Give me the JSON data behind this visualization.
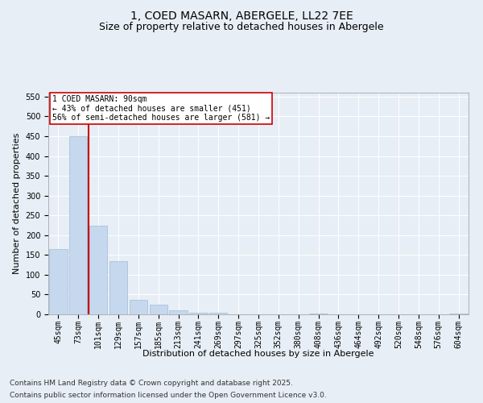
{
  "title": "1, COED MASARN, ABERGELE, LL22 7EE",
  "subtitle": "Size of property relative to detached houses in Abergele",
  "xlabel": "Distribution of detached houses by size in Abergele",
  "ylabel": "Number of detached properties",
  "categories": [
    "45sqm",
    "73sqm",
    "101sqm",
    "129sqm",
    "157sqm",
    "185sqm",
    "213sqm",
    "241sqm",
    "269sqm",
    "297sqm",
    "325sqm",
    "352sqm",
    "380sqm",
    "408sqm",
    "436sqm",
    "464sqm",
    "492sqm",
    "520sqm",
    "548sqm",
    "576sqm",
    "604sqm"
  ],
  "values": [
    165,
    450,
    224,
    134,
    37,
    25,
    10,
    5,
    4,
    0,
    1,
    0,
    0,
    2,
    0,
    0,
    0,
    0,
    0,
    0,
    2
  ],
  "bar_color": "#c5d8ed",
  "bar_edge_color": "#a0bcd8",
  "red_line_x": 1.5,
  "property_label": "1 COED MASARN: 90sqm",
  "annotation_line1": "← 43% of detached houses are smaller (451)",
  "annotation_line2": "56% of semi-detached houses are larger (581) →",
  "annotation_box_color": "#cc0000",
  "ylim": [
    0,
    560
  ],
  "yticks": [
    0,
    50,
    100,
    150,
    200,
    250,
    300,
    350,
    400,
    450,
    500,
    550
  ],
  "footer1": "Contains HM Land Registry data © Crown copyright and database right 2025.",
  "footer2": "Contains public sector information licensed under the Open Government Licence v3.0.",
  "bg_color": "#e8eef5",
  "plot_bg_color": "#e8eef5",
  "grid_color": "#ffffff",
  "title_fontsize": 10,
  "subtitle_fontsize": 9,
  "axis_label_fontsize": 8,
  "tick_fontsize": 7,
  "annotation_fontsize": 7,
  "footer_fontsize": 6.5
}
